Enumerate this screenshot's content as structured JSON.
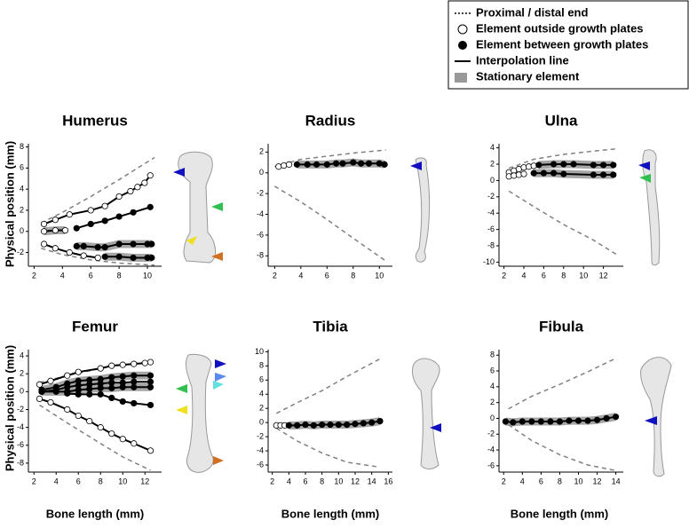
{
  "legend": {
    "items": [
      "Proximal / distal end",
      "Element outside growth plates",
      "Element between growth plates",
      "Interpolation line",
      "Stationary element"
    ]
  },
  "y_label": "Physical position (mm)",
  "x_label": "Bone length (mm)",
  "chart_data": [
    {
      "type": "line",
      "title": "Humerus",
      "xlim": [
        1.6,
        11
      ],
      "ylim": [
        -3.3,
        8.3
      ],
      "xticks": [
        2,
        4,
        6,
        8,
        10
      ],
      "yticks": [
        -2,
        0,
        2,
        4,
        6,
        8
      ],
      "series": [
        {
          "style": "dashed",
          "color": "#808080",
          "x": [
            2.5,
            4,
            6,
            8,
            10.5
          ],
          "values": [
            0.8,
            1.8,
            3.3,
            4.9,
            7
          ]
        },
        {
          "style": "dashed",
          "color": "#808080",
          "x": [
            2.5,
            4,
            6,
            8,
            10.5
          ],
          "values": [
            -1.6,
            -2.2,
            -2.7,
            -3.0,
            -3.2
          ]
        },
        {
          "style": "open",
          "color": "#000000",
          "x": [
            2.7,
            3.5,
            4.5,
            6,
            7,
            8,
            8.8,
            9.3,
            9.8,
            10.2
          ],
          "values": [
            0.7,
            1.1,
            1.6,
            2.0,
            2.4,
            3.3,
            3.8,
            4.2,
            4.6,
            5.3
          ]
        },
        {
          "style": "open",
          "color": "#000000",
          "stationary": true,
          "x": [
            2.7,
            3.5,
            4.2
          ],
          "values": [
            0,
            0.1,
            0.1
          ]
        },
        {
          "style": "filled",
          "color": "#000000",
          "x": [
            5,
            6,
            7,
            8,
            9,
            10.2
          ],
          "values": [
            0.3,
            0.7,
            1.0,
            1.4,
            1.8,
            2.3
          ]
        },
        {
          "style": "filled",
          "color": "#000000",
          "stationary": true,
          "x": [
            5,
            5.5,
            6.5,
            7,
            8,
            9,
            10,
            10.3
          ],
          "values": [
            -1.4,
            -1.4,
            -1.5,
            -1.5,
            -1.2,
            -1.2,
            -1.2,
            -1.2
          ]
        },
        {
          "style": "open",
          "color": "#000000",
          "x": [
            2.7,
            3.5,
            4.5,
            5.5,
            6.5
          ],
          "values": [
            -1.2,
            -1.6,
            -2.0,
            -2.3,
            -2.5
          ]
        },
        {
          "style": "filled",
          "color": "#000000",
          "stationary": true,
          "x": [
            7,
            8,
            9,
            10,
            10.3
          ],
          "values": [
            -2.4,
            -2.4,
            -2.5,
            -2.5,
            -2.5
          ]
        }
      ]
    },
    {
      "type": "line",
      "title": "Radius",
      "xlim": [
        1.5,
        11
      ],
      "ylim": [
        -9,
        2.8
      ],
      "xticks": [
        2,
        4,
        6,
        8,
        10
      ],
      "yticks": [
        -8,
        -6,
        -4,
        -2,
        0,
        2
      ],
      "series": [
        {
          "style": "dashed",
          "color": "#808080",
          "x": [
            2,
            4,
            6,
            8,
            10.5
          ],
          "values": [
            0.6,
            1.3,
            1.6,
            1.9,
            2.2
          ]
        },
        {
          "style": "dashed",
          "color": "#808080",
          "x": [
            2,
            4,
            6,
            8,
            10.5
          ],
          "values": [
            -1.3,
            -2.8,
            -4.5,
            -6.3,
            -8.5
          ]
        },
        {
          "style": "open",
          "color": "#000000",
          "x": [
            2.3,
            2.7,
            3.1
          ],
          "values": [
            0.6,
            0.7,
            0.8
          ]
        },
        {
          "style": "filled",
          "color": "#000000",
          "stationary": true,
          "x": [
            3.7,
            4.5,
            5.2,
            6,
            6.7,
            7.2,
            8,
            8.6,
            9.2,
            10,
            10.4
          ],
          "values": [
            0.8,
            0.8,
            0.8,
            0.8,
            0.9,
            0.9,
            1.0,
            0.9,
            0.9,
            0.9,
            0.8
          ]
        }
      ]
    },
    {
      "type": "line",
      "title": "Ulna",
      "xlim": [
        1.5,
        14
      ],
      "ylim": [
        -10.5,
        4.5
      ],
      "xticks": [
        2,
        4,
        6,
        8,
        10,
        12
      ],
      "yticks": [
        -10,
        -8,
        -6,
        -4,
        -2,
        0,
        2,
        4
      ],
      "series": [
        {
          "style": "dashed",
          "color": "#808080",
          "x": [
            2.5,
            5,
            8,
            11,
            13.5
          ],
          "values": [
            1.5,
            2.6,
            3.2,
            3.6,
            3.9
          ]
        },
        {
          "style": "dashed",
          "color": "#808080",
          "x": [
            2.5,
            5,
            8,
            11,
            13.5
          ],
          "values": [
            -1.3,
            -3.2,
            -5.4,
            -7.3,
            -9.2
          ]
        },
        {
          "style": "open",
          "color": "#000000",
          "x": [
            2.5,
            3,
            3.5,
            4,
            4.5,
            5
          ],
          "values": [
            1.0,
            1.2,
            1.4,
            1.6,
            1.7,
            1.8
          ]
        },
        {
          "style": "filled",
          "color": "#000000",
          "stationary": true,
          "x": [
            5.5,
            7,
            8,
            9,
            11,
            12,
            13
          ],
          "values": [
            1.9,
            2.0,
            2.0,
            2.0,
            1.9,
            1.9,
            1.9
          ]
        },
        {
          "style": "open",
          "color": "#000000",
          "x": [
            2.5,
            3,
            3.5,
            4
          ],
          "values": [
            0.5,
            0.6,
            0.7,
            0.8
          ]
        },
        {
          "style": "filled",
          "color": "#000000",
          "stationary": true,
          "x": [
            5,
            6,
            7,
            8,
            11,
            12,
            13
          ],
          "values": [
            0.9,
            0.9,
            0.9,
            0.8,
            0.7,
            0.7,
            0.7
          ]
        }
      ]
    },
    {
      "type": "line",
      "title": "Femur",
      "xlim": [
        1.5,
        13.5
      ],
      "ylim": [
        -9,
        4.7
      ],
      "xticks": [
        2,
        4,
        6,
        8,
        10,
        12
      ],
      "yticks": [
        -8,
        -6,
        -4,
        -2,
        0,
        2,
        4
      ],
      "series": [
        {
          "style": "dashed",
          "color": "#808080",
          "x": [
            2.5,
            5,
            8,
            10,
            12.5
          ],
          "values": [
            1.0,
            1.8,
            2.6,
            3.0,
            3.4
          ]
        },
        {
          "style": "dashed",
          "color": "#808080",
          "x": [
            2.5,
            5,
            8,
            10,
            12.5
          ],
          "values": [
            -1.5,
            -3.5,
            -5.8,
            -7.3,
            -8.8
          ]
        },
        {
          "style": "open",
          "color": "#000000",
          "x": [
            2.5,
            3.5,
            5,
            6,
            8,
            9,
            10,
            11,
            12,
            12.5
          ],
          "values": [
            0.8,
            1.2,
            1.8,
            2.2,
            2.6,
            2.9,
            3.0,
            3.1,
            3.2,
            3.3
          ]
        },
        {
          "style": "filled",
          "color": "#000000",
          "stationary": true,
          "x": [
            2.7,
            4,
            5,
            6,
            7,
            8,
            9,
            10,
            11,
            12.5
          ],
          "values": [
            0.2,
            0.5,
            0.9,
            1.2,
            1.3,
            1.4,
            1.6,
            1.7,
            1.8,
            1.8
          ]
        },
        {
          "style": "filled",
          "color": "#000000",
          "x": [
            2.7,
            4,
            5,
            6,
            7,
            8,
            9,
            10,
            11,
            12.5
          ],
          "values": [
            0,
            0.2,
            0.5,
            0.7,
            0.8,
            0.9,
            1.0,
            1.0,
            1.1,
            1.1
          ]
        },
        {
          "style": "filled",
          "color": "#000000",
          "stationary": true,
          "x": [
            2.7,
            4,
            5,
            6,
            7,
            8,
            9,
            10,
            11,
            12.5
          ],
          "values": [
            0,
            0,
            0,
            0.2,
            0.3,
            0.4,
            0.4,
            0.5,
            0.5,
            0.5
          ]
        },
        {
          "style": "filled",
          "color": "#000000",
          "x": [
            5,
            6,
            7,
            8,
            9,
            10,
            11,
            12.5
          ],
          "values": [
            -0.2,
            -0.3,
            -0.3,
            -0.3,
            -0.7,
            -1.1,
            -1.3,
            -1.5
          ]
        },
        {
          "style": "open",
          "color": "#000000",
          "x": [
            2.5,
            3.5,
            5,
            6,
            7,
            8,
            9,
            10,
            11,
            12.5
          ],
          "values": [
            -0.8,
            -1.2,
            -2.0,
            -2.7,
            -3.3,
            -4.0,
            -4.7,
            -5.3,
            -5.8,
            -6.6
          ]
        }
      ]
    },
    {
      "type": "line",
      "title": "Tibia",
      "xlim": [
        1.5,
        16.5
      ],
      "ylim": [
        -7,
        10.3
      ],
      "xticks": [
        2,
        4,
        6,
        8,
        10,
        12,
        14,
        16
      ],
      "yticks": [
        -6,
        -4,
        -2,
        0,
        2,
        4,
        6,
        8,
        10
      ],
      "series": [
        {
          "style": "dashed",
          "color": "#808080",
          "x": [
            2.5,
            5,
            8,
            11,
            15
          ],
          "values": [
            1.3,
            2.8,
            4.5,
            6.5,
            9.0
          ]
        },
        {
          "style": "dashed",
          "color": "#808080",
          "x": [
            2.5,
            5,
            8,
            11,
            15
          ],
          "values": [
            -0.8,
            -2.6,
            -4.3,
            -5.6,
            -6.3
          ]
        },
        {
          "style": "open",
          "color": "#000000",
          "x": [
            2.5,
            3,
            3.5
          ],
          "values": [
            -0.4,
            -0.4,
            -0.4
          ]
        },
        {
          "style": "filled",
          "color": "#000000",
          "stationary": true,
          "x": [
            4,
            5,
            6,
            7,
            8,
            9,
            10,
            11,
            12,
            13,
            14,
            15
          ],
          "values": [
            -0.4,
            -0.4,
            -0.3,
            -0.4,
            -0.3,
            -0.3,
            -0.3,
            -0.3,
            -0.2,
            -0.1,
            0,
            0.2
          ]
        }
      ]
    },
    {
      "type": "line",
      "title": "Fibula",
      "xlim": [
        1.5,
        14.8
      ],
      "ylim": [
        -6.8,
        8.7
      ],
      "xticks": [
        2,
        4,
        6,
        8,
        10,
        12,
        14
      ],
      "yticks": [
        -6,
        -4,
        -2,
        0,
        2,
        4,
        6,
        8
      ],
      "series": [
        {
          "style": "dashed",
          "color": "#808080",
          "x": [
            2.5,
            5,
            8,
            11,
            14
          ],
          "values": [
            1.2,
            2.8,
            4.3,
            5.9,
            7.6
          ]
        },
        {
          "style": "dashed",
          "color": "#808080",
          "x": [
            2.5,
            5,
            8,
            11,
            14
          ],
          "values": [
            -0.8,
            -2.8,
            -4.6,
            -5.9,
            -6.6
          ]
        },
        {
          "style": "filled",
          "color": "#000000",
          "stationary": true,
          "x": [
            2.2,
            3,
            4,
            5,
            6,
            7,
            8,
            9,
            10,
            11,
            12,
            13,
            14
          ],
          "values": [
            -0.4,
            -0.5,
            -0.4,
            -0.4,
            -0.4,
            -0.4,
            -0.4,
            -0.3,
            -0.3,
            -0.3,
            -0.2,
            0,
            0.2
          ]
        }
      ]
    }
  ]
}
